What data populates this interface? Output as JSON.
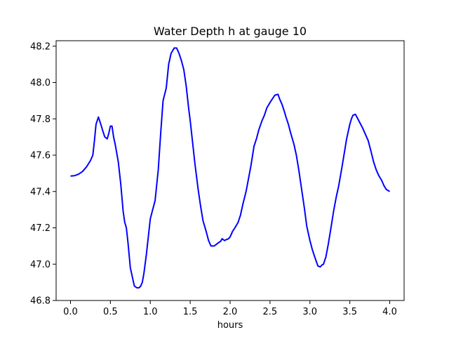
{
  "chart_data": {
    "type": "line",
    "title": "Water Depth h at gauge 10",
    "xlabel": "hours",
    "ylabel": "",
    "xlim": [
      -0.18,
      4.18
    ],
    "ylim": [
      46.8,
      48.23
    ],
    "xticks": [
      0.0,
      0.5,
      1.0,
      1.5,
      2.0,
      2.5,
      3.0,
      3.5,
      4.0
    ],
    "xtick_labels": [
      "0.0",
      "0.5",
      "1.0",
      "1.5",
      "2.0",
      "2.5",
      "3.0",
      "3.5",
      "4.0"
    ],
    "yticks": [
      46.8,
      47.0,
      47.2,
      47.4,
      47.6,
      47.8,
      48.0,
      48.2
    ],
    "ytick_labels": [
      "46.8",
      "47.0",
      "47.2",
      "47.4",
      "47.6",
      "47.8",
      "48.0",
      "48.2"
    ],
    "grid": false,
    "colors": {
      "line": "#0000ff"
    },
    "series": [
      {
        "x": [
          0.0,
          0.05,
          0.1,
          0.15,
          0.2,
          0.25,
          0.28,
          0.3,
          0.32,
          0.35,
          0.38,
          0.4,
          0.43,
          0.46,
          0.48,
          0.5,
          0.52,
          0.54,
          0.56,
          0.6,
          0.63,
          0.66,
          0.68,
          0.7,
          0.72,
          0.75,
          0.78,
          0.8,
          0.83,
          0.86,
          0.88,
          0.9,
          0.92,
          0.95,
          0.97,
          1.0,
          1.03,
          1.06,
          1.1,
          1.13,
          1.16,
          1.2,
          1.23,
          1.26,
          1.3,
          1.33,
          1.36,
          1.39,
          1.42,
          1.45,
          1.48,
          1.5,
          1.53,
          1.56,
          1.6,
          1.63,
          1.66,
          1.7,
          1.73,
          1.76,
          1.8,
          1.83,
          1.86,
          1.88,
          1.9,
          1.93,
          1.95,
          1.98,
          2.0,
          2.03,
          2.06,
          2.1,
          2.13,
          2.16,
          2.2,
          2.23,
          2.26,
          2.3,
          2.33,
          2.36,
          2.4,
          2.43,
          2.46,
          2.5,
          2.53,
          2.56,
          2.6,
          2.62,
          2.65,
          2.68,
          2.7,
          2.73,
          2.76,
          2.8,
          2.83,
          2.86,
          2.9,
          2.93,
          2.96,
          3.0,
          3.03,
          3.06,
          3.1,
          3.13,
          3.15,
          3.17,
          3.2,
          3.23,
          3.26,
          3.3,
          3.33,
          3.36,
          3.4,
          3.43,
          3.46,
          3.5,
          3.52,
          3.54,
          3.57,
          3.6,
          3.63,
          3.66,
          3.7,
          3.73,
          3.76,
          3.8,
          3.83,
          3.86,
          3.9,
          3.93,
          3.96,
          4.0
        ],
        "y": [
          47.485,
          47.487,
          47.495,
          47.51,
          47.535,
          47.57,
          47.6,
          47.68,
          47.77,
          47.81,
          47.77,
          47.74,
          47.7,
          47.69,
          47.72,
          47.76,
          47.76,
          47.7,
          47.66,
          47.56,
          47.44,
          47.29,
          47.23,
          47.2,
          47.12,
          46.98,
          46.92,
          46.88,
          46.87,
          46.87,
          46.88,
          46.9,
          46.95,
          47.05,
          47.13,
          47.25,
          47.3,
          47.35,
          47.52,
          47.72,
          47.9,
          47.97,
          48.1,
          48.16,
          48.19,
          48.19,
          48.16,
          48.12,
          48.07,
          47.98,
          47.86,
          47.79,
          47.67,
          47.55,
          47.41,
          47.32,
          47.24,
          47.18,
          47.13,
          47.1,
          47.1,
          47.11,
          47.12,
          47.125,
          47.14,
          47.13,
          47.135,
          47.14,
          47.15,
          47.18,
          47.2,
          47.23,
          47.27,
          47.33,
          47.4,
          47.47,
          47.54,
          47.65,
          47.69,
          47.74,
          47.79,
          47.82,
          47.86,
          47.89,
          47.91,
          47.93,
          47.935,
          47.91,
          47.88,
          47.84,
          47.81,
          47.77,
          47.72,
          47.66,
          47.6,
          47.52,
          47.4,
          47.31,
          47.21,
          47.13,
          47.08,
          47.04,
          46.99,
          46.985,
          46.995,
          47.0,
          47.04,
          47.11,
          47.19,
          47.3,
          47.37,
          47.43,
          47.53,
          47.61,
          47.69,
          47.77,
          47.8,
          47.82,
          47.825,
          47.8,
          47.775,
          47.75,
          47.71,
          47.68,
          47.63,
          47.56,
          47.52,
          47.49,
          47.46,
          47.43,
          47.41,
          47.4
        ]
      }
    ]
  }
}
